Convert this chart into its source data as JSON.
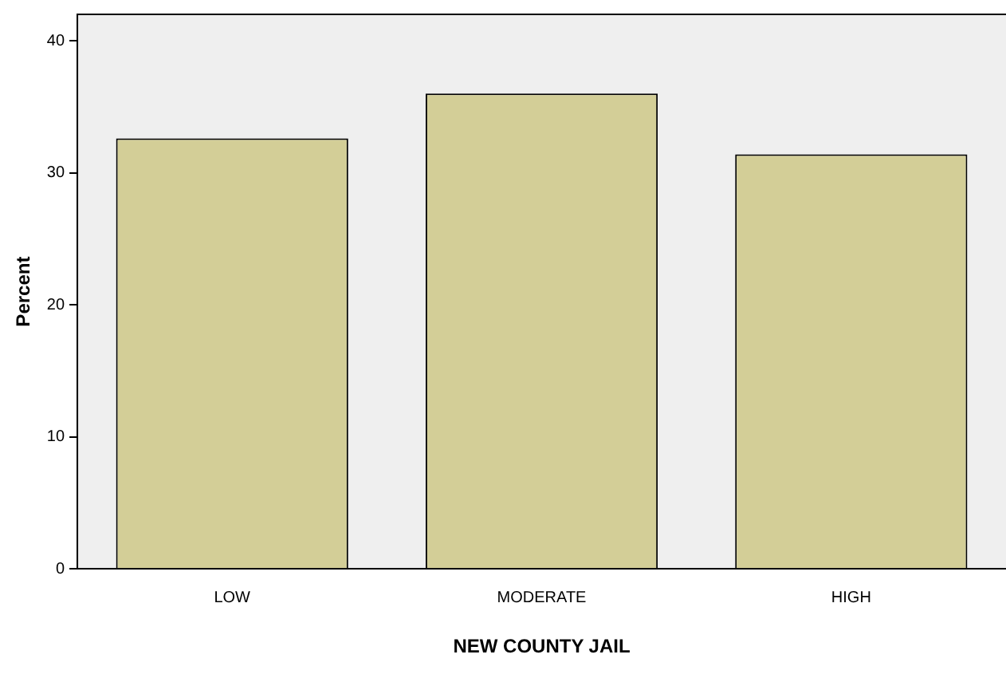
{
  "chart_data": {
    "type": "bar",
    "xlabel": "NEW COUNTY JAIL",
    "ylabel": "Percent",
    "categories": [
      "LOW",
      "MODERATE",
      "HIGH"
    ],
    "values": [
      32.6,
      36.0,
      31.4
    ],
    "color": "#d3ce97",
    "ylim": [
      0,
      42
    ],
    "yticks": [
      0,
      10,
      20,
      30,
      40
    ],
    "grid": false,
    "legend": false
  }
}
